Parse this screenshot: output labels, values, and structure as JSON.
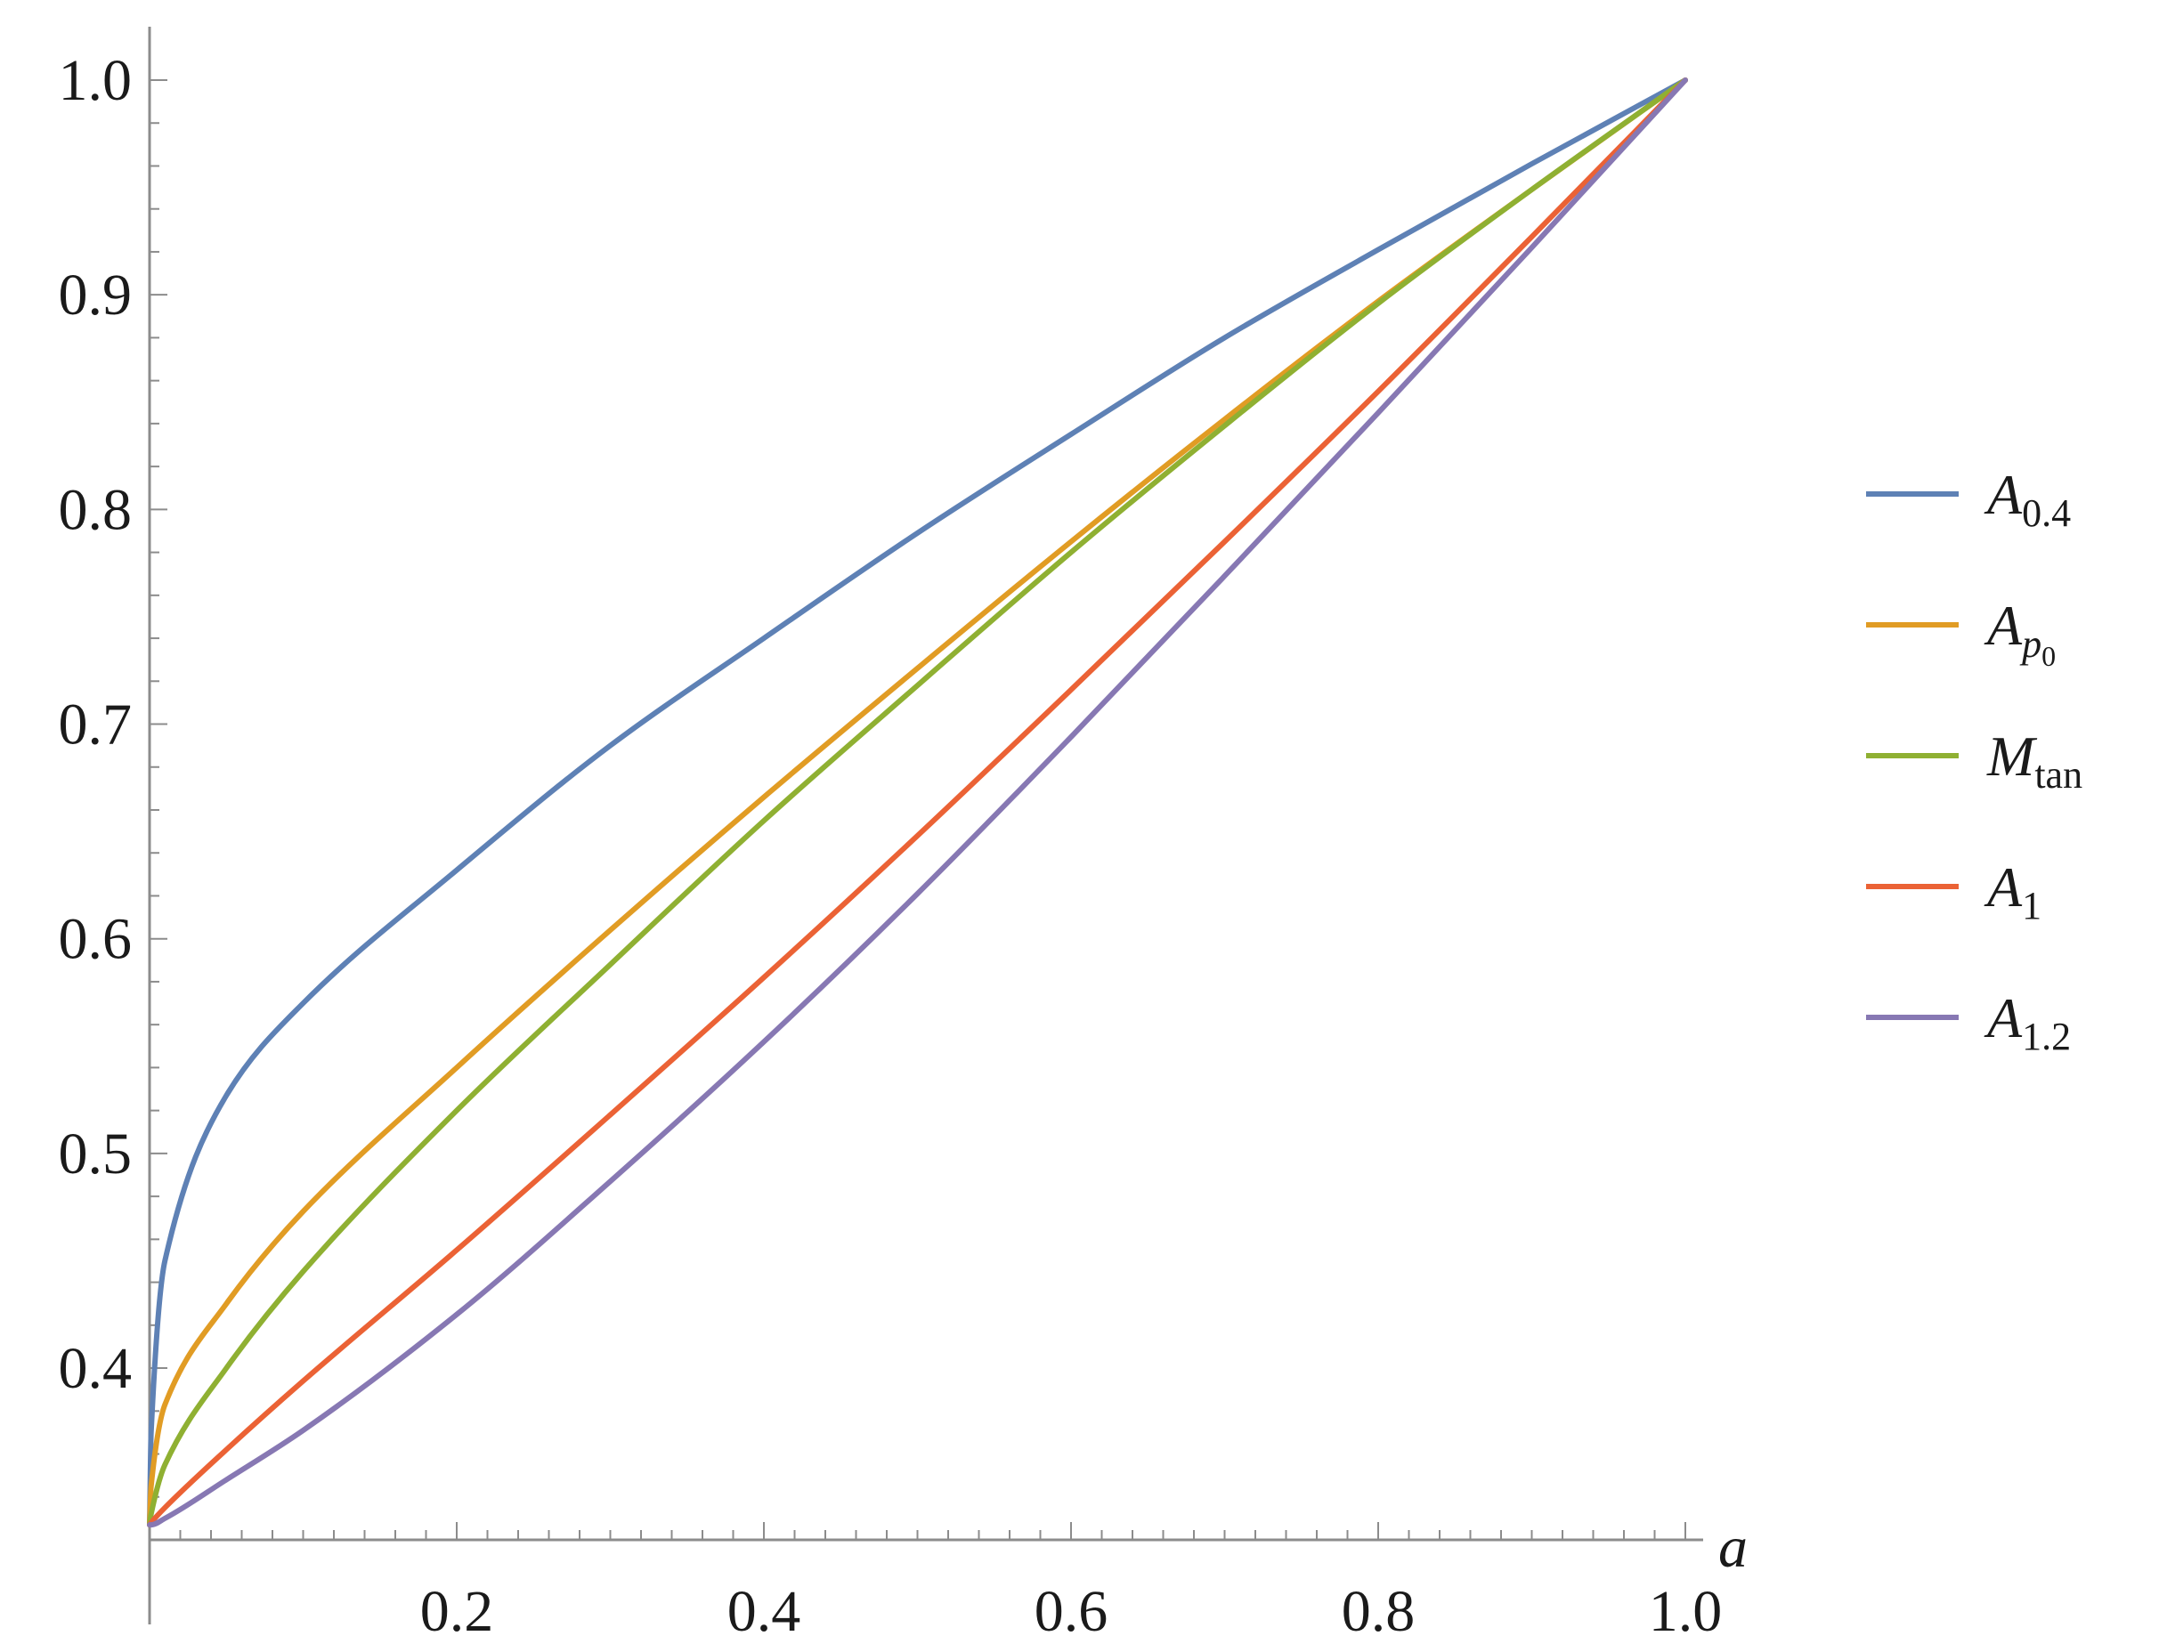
{
  "chart_data": {
    "type": "line",
    "title": "",
    "xlabel": "a",
    "ylabel": "",
    "xlim": [
      0,
      1.0
    ],
    "ylim": [
      0.32,
      1.0
    ],
    "x_ticks": [
      0.2,
      0.4,
      0.6,
      0.8,
      1.0
    ],
    "x_tick_labels": [
      "0.2",
      "0.4",
      "0.6",
      "0.8",
      "1.0"
    ],
    "y_ticks": [
      0.4,
      0.5,
      0.6,
      0.7,
      0.8,
      0.9,
      1.0
    ],
    "y_tick_labels": [
      "0.4",
      "0.5",
      "0.6",
      "0.7",
      "0.8",
      "0.9",
      "1.0"
    ],
    "grid": false,
    "legend_position": "right",
    "x": [
      0,
      0.001,
      0.01,
      0.05,
      0.1,
      0.2,
      0.3,
      0.4,
      0.5,
      0.6,
      0.7,
      0.8,
      0.9,
      1.0
    ],
    "series": [
      {
        "name": "A0.4",
        "legend": {
          "main": "A",
          "sub": "0.4",
          "subsub": ""
        },
        "color": "#5e81b5",
        "values": [
          0.327,
          0.37,
          0.45,
          0.527,
          0.57,
          0.632,
          0.69,
          0.74,
          0.789,
          0.835,
          0.88,
          0.921,
          0.961,
          1.0
        ]
      },
      {
        "name": "Ap0",
        "legend": {
          "main": "A",
          "sub": "p",
          "subsub": "0"
        },
        "color": "#e19c24",
        "values": [
          0.327,
          0.345,
          0.383,
          0.43,
          0.473,
          0.54,
          0.604,
          0.666,
          0.726,
          0.785,
          0.842,
          0.897,
          0.949,
          1.0
        ]
      },
      {
        "name": "Mtan",
        "legend": {
          "main": "M",
          "sub": "tan",
          "subsub": ""
        },
        "color": "#8fb032",
        "values": [
          0.327,
          0.332,
          0.355,
          0.4,
          0.445,
          0.52,
          0.588,
          0.655,
          0.718,
          0.78,
          0.839,
          0.896,
          0.949,
          1.0
        ]
      },
      {
        "name": "A1",
        "legend": {
          "main": "A",
          "sub": "1",
          "subsub": ""
        },
        "color": "#eb6235",
        "values": [
          0.327,
          0.328,
          0.335,
          0.362,
          0.394,
          0.455,
          0.518,
          0.582,
          0.648,
          0.716,
          0.785,
          0.855,
          0.927,
          1.0
        ]
      },
      {
        "name": "A1.2",
        "legend": {
          "main": "A",
          "sub": "1.2",
          "subsub": ""
        },
        "color": "#8778b3",
        "values": [
          0.327,
          0.327,
          0.33,
          0.348,
          0.371,
          0.425,
          0.487,
          0.552,
          0.621,
          0.694,
          0.769,
          0.845,
          0.922,
          1.0
        ]
      }
    ]
  }
}
